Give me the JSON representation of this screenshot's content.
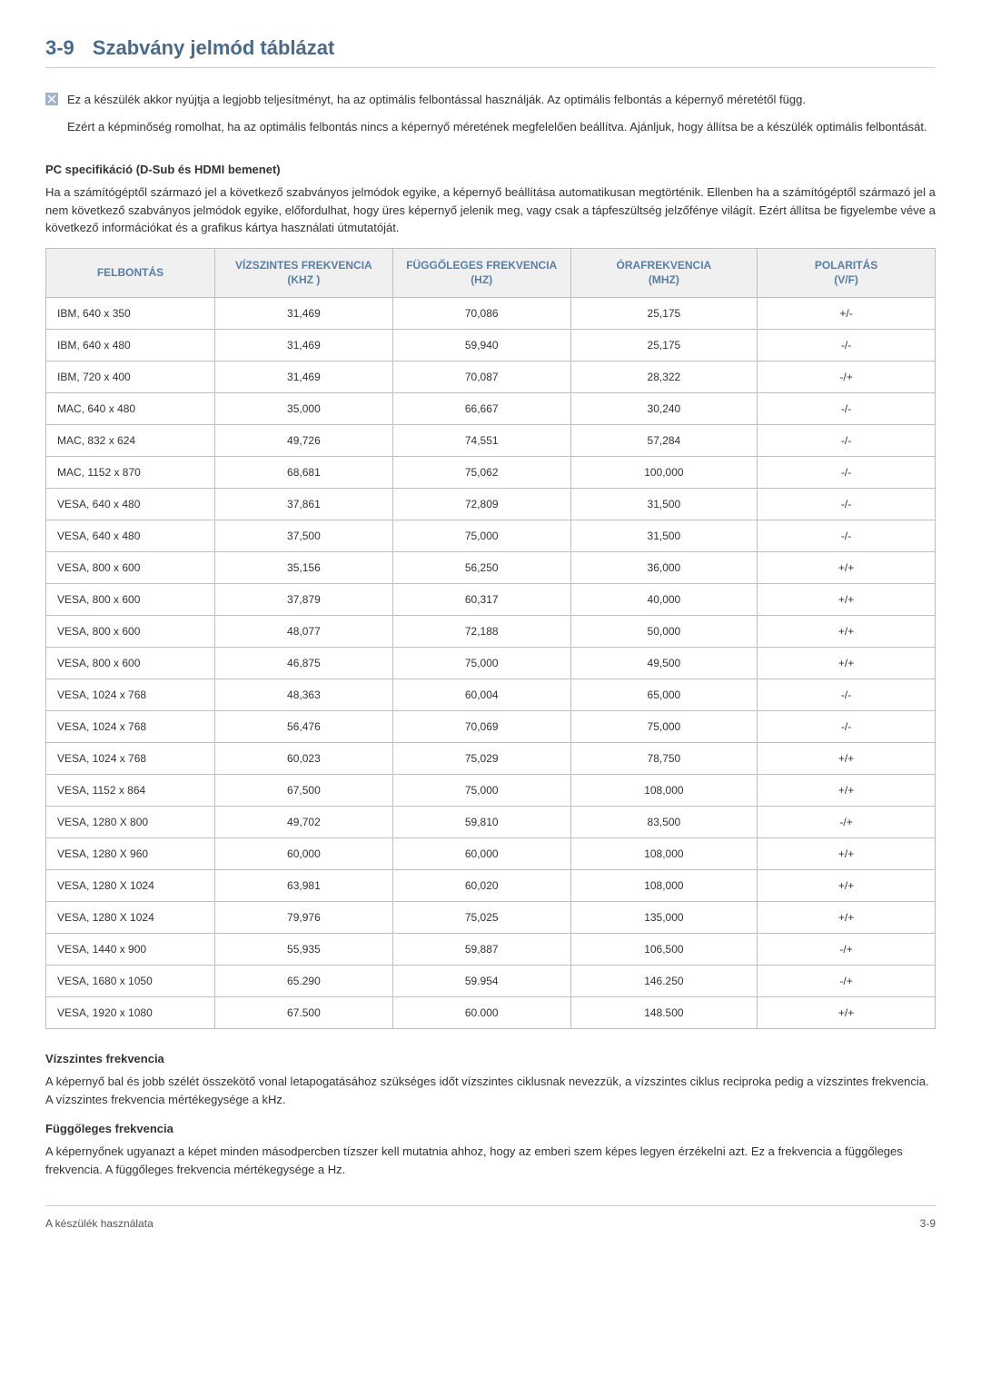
{
  "section": {
    "number": "3-9",
    "title": "Szabvány jelmód táblázat"
  },
  "note": {
    "p1": "Ez a készülék akkor nyújtja a legjobb teljesítményt, ha az optimális felbontással használják. Az optimális felbontás a képernyő méretétől függ.",
    "p2": "Ezért a képminőség romolhat, ha az optimális felbontás nincs a képernyő méretének megfelelően beállítva. Ajánljuk, hogy állítsa be a készülék optimális felbontását."
  },
  "pcspec": {
    "title": "PC specifikáció (D-Sub és HDMI bemenet)",
    "text": "Ha a számítógéptől származó jel a következő szabványos jelmódok egyike, a képernyő beállítása automatikusan megtörténik. Ellenben ha a számítógéptől származó jel a nem következő szabványos jelmódok egyike, előfordulhat, hogy üres képernyő jelenik meg, vagy csak a tápfeszültség jelzőfénye világít. Ezért állítsa be figyelembe véve a következő információkat és a grafikus kártya használati útmutatóját."
  },
  "table": {
    "columns": [
      "FELBONTÁS",
      "VÍZSZINTES FREKVENCIA (KHZ )",
      "FÜGGŐLEGES FREKVENCIA (HZ)",
      "ÓRAFREKVENCIA (MHZ)",
      "POLARITÁS (V/F)"
    ],
    "col_widths": [
      "19%",
      "20%",
      "20%",
      "21%",
      "20%"
    ],
    "header_color": "#5780a8",
    "header_bg": "#f0f0f0",
    "border_color": "#bfbfbf",
    "text_color": "#333333",
    "fontsize_header": 12,
    "fontsize_cell": 12,
    "rows": [
      [
        "IBM, 640 x 350",
        "31,469",
        "70,086",
        "25,175",
        "+/-"
      ],
      [
        "IBM, 640 x 480",
        "31,469",
        "59,940",
        "25,175",
        "-/-"
      ],
      [
        "IBM, 720 x 400",
        "31,469",
        "70,087",
        "28,322",
        "-/+"
      ],
      [
        "MAC, 640 x 480",
        "35,000",
        "66,667",
        "30,240",
        "-/-"
      ],
      [
        "MAC, 832 x 624",
        "49,726",
        "74,551",
        "57,284",
        "-/-"
      ],
      [
        "MAC, 1152 x 870",
        "68,681",
        "75,062",
        "100,000",
        "-/-"
      ],
      [
        "VESA, 640 x 480",
        "37,861",
        "72,809",
        "31,500",
        "-/-"
      ],
      [
        "VESA, 640 x 480",
        "37,500",
        "75,000",
        "31,500",
        "-/-"
      ],
      [
        "VESA, 800 x 600",
        "35,156",
        "56,250",
        "36,000",
        "+/+"
      ],
      [
        "VESA, 800 x 600",
        "37,879",
        "60,317",
        "40,000",
        "+/+"
      ],
      [
        "VESA, 800 x 600",
        "48,077",
        "72,188",
        "50,000",
        "+/+"
      ],
      [
        "VESA, 800 x 600",
        "46,875",
        "75,000",
        "49,500",
        "+/+"
      ],
      [
        "VESA, 1024 x 768",
        "48,363",
        "60,004",
        "65,000",
        "-/-"
      ],
      [
        "VESA, 1024 x 768",
        "56,476",
        "70,069",
        "75,000",
        "-/-"
      ],
      [
        "VESA, 1024 x 768",
        "60,023",
        "75,029",
        "78,750",
        "+/+"
      ],
      [
        "VESA, 1152 x 864",
        "67,500",
        "75,000",
        "108,000",
        "+/+"
      ],
      [
        "VESA, 1280 X 800",
        "49,702",
        "59,810",
        "83,500",
        "-/+"
      ],
      [
        "VESA, 1280 X 960",
        "60,000",
        "60,000",
        "108,000",
        "+/+"
      ],
      [
        "VESA, 1280 X 1024",
        "63,981",
        "60,020",
        "108,000",
        "+/+"
      ],
      [
        "VESA, 1280 X 1024",
        "79,976",
        "75,025",
        "135,000",
        "+/+"
      ],
      [
        "VESA, 1440 x 900",
        "55,935",
        "59,887",
        "106,500",
        "-/+"
      ],
      [
        "VESA, 1680 x 1050",
        "65.290",
        "59.954",
        "146.250",
        "-/+"
      ],
      [
        "VESA, 1920 x 1080",
        "67.500",
        "60.000",
        "148.500",
        "+/+"
      ]
    ]
  },
  "horizfreq": {
    "title": "Vízszintes frekvencia",
    "text": "A képernyő bal és jobb szélét összekötő vonal letapogatásához szükséges időt vízszintes ciklusnak nevezzük, a vízszintes ciklus reciproka pedig a vízszintes frekvencia. A vízszintes frekvencia mértékegysége a kHz."
  },
  "vertfreq": {
    "title": "Függőleges frekvencia",
    "text": "A képernyőnek ugyanazt a képet minden másodpercben tízszer kell mutatnia ahhoz, hogy az emberi szem képes legyen érzékelni azt. Ez a frekvencia a függőleges frekvencia. A függőleges frekvencia mértékegysége a Hz."
  },
  "footer": {
    "left": "A készülék használata",
    "right": "3-9"
  },
  "colors": {
    "heading": "#4a6a8a",
    "body_text": "#333333",
    "border": "#cccccc",
    "table_border": "#bfbfbf",
    "table_header_bg": "#f0f0f0",
    "table_header_text": "#5780a8",
    "background": "#ffffff"
  }
}
